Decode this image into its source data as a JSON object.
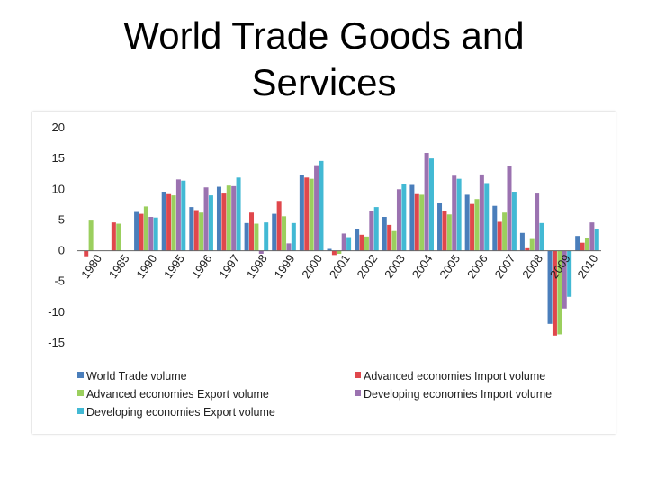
{
  "slide": {
    "title_line1": "World Trade Goods and",
    "title_line2": "Services"
  },
  "chart_data": {
    "type": "bar",
    "title": "",
    "xlabel": "",
    "ylabel": "",
    "ylim": [
      -15,
      20
    ],
    "yticks": [
      "20",
      "15",
      "10",
      "5",
      "0",
      "-5",
      "-10",
      "-15"
    ],
    "ytick_values": [
      20,
      15,
      10,
      5,
      0,
      -5,
      -10,
      -15
    ],
    "grid": false,
    "legend_position": "bottom",
    "categories": [
      "1980",
      "1985",
      "1990",
      "1995",
      "1996",
      "1997",
      "1998",
      "1999",
      "2000",
      "2001",
      "2002",
      "2003",
      "2004",
      "2005",
      "2006",
      "2007",
      "2008",
      "2009",
      "2010"
    ],
    "series": [
      {
        "name": "World Trade volume",
        "color": "#4a7ebb",
        "values": [
          0,
          0,
          6.3,
          9.6,
          7.1,
          10.4,
          4.5,
          6.0,
          12.3,
          0.3,
          3.5,
          5.5,
          10.7,
          7.7,
          9.1,
          7.3,
          2.9,
          -11.9,
          2.4
        ]
      },
      {
        "name": "Advanced economies Import volume",
        "color": "#e0474c",
        "values": [
          -0.9,
          4.6,
          6.0,
          9.2,
          6.6,
          9.3,
          6.2,
          8.1,
          11.9,
          -0.7,
          2.6,
          4.2,
          9.2,
          6.4,
          7.6,
          4.7,
          0.4,
          -13.8,
          1.3
        ]
      },
      {
        "name": "Advanced economies Export volume",
        "color": "#9bcf5e",
        "values": [
          4.9,
          4.4,
          7.2,
          9.0,
          6.2,
          10.6,
          4.4,
          5.6,
          11.7,
          -0.5,
          2.3,
          3.2,
          9.1,
          5.9,
          8.4,
          6.2,
          1.9,
          -13.6,
          2.1
        ]
      },
      {
        "name": "Developing economies Import volume",
        "color": "#9b72b0",
        "values": [
          0,
          0,
          5.5,
          11.6,
          10.3,
          10.5,
          -0.5,
          1.2,
          13.9,
          2.8,
          6.4,
          10.0,
          15.9,
          12.2,
          12.4,
          13.8,
          9.3,
          -9.4,
          4.6
        ]
      },
      {
        "name": "Developing economies Export volume",
        "color": "#42b9d4",
        "values": [
          0,
          0,
          5.4,
          11.4,
          9.0,
          11.9,
          4.6,
          4.5,
          14.6,
          2.2,
          7.1,
          10.9,
          15.0,
          11.7,
          11.0,
          9.6,
          4.5,
          -7.5,
          3.6
        ]
      }
    ]
  }
}
